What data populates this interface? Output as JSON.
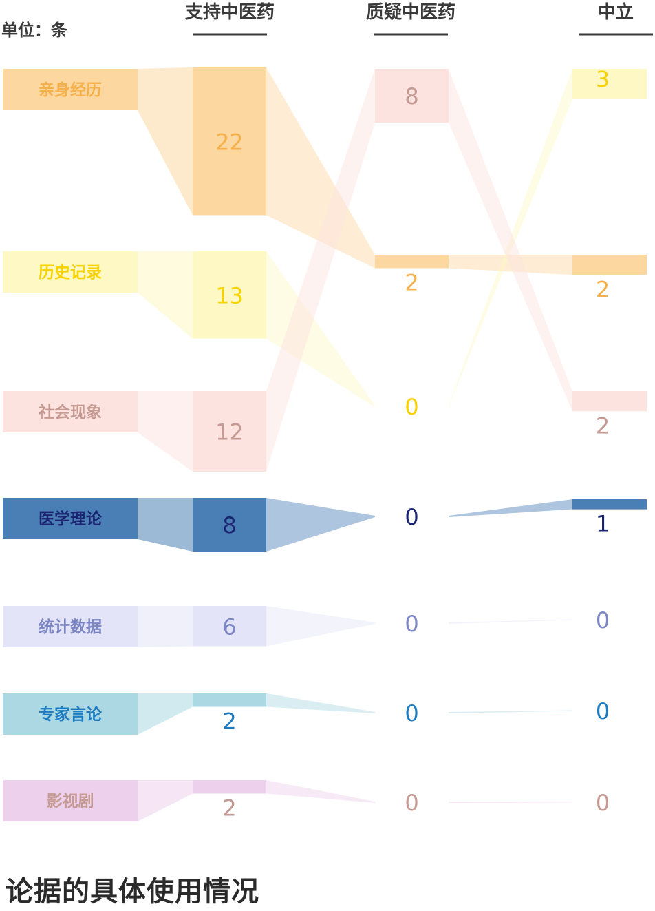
{
  "unit_label": "单位：条",
  "title": "论据的具体使用情况",
  "chart_data": {
    "type": "sankey",
    "title": "论据的具体使用情况",
    "unit": "单位：条",
    "columns": [
      "支持中医药",
      "质疑中医药",
      "中立"
    ],
    "rows": [
      {
        "name": "亲身经历",
        "values": [
          22,
          2,
          2
        ],
        "fill": "#fcd7a0",
        "label_color": "#f5b04a",
        "value_color": "#f5b04a"
      },
      {
        "name": "历史记录",
        "values": [
          13,
          0,
          3
        ],
        "fill": "#fdf8c4",
        "label_color": "#f7d200",
        "value_color": "#f7d200"
      },
      {
        "name": "社会现象",
        "values": [
          12,
          8,
          2
        ],
        "fill": "#fde3e0",
        "label_color": "#c59a93",
        "value_color": "#c59a93"
      },
      {
        "name": "医学理论",
        "values": [
          8,
          0,
          1
        ],
        "fill": "#4a7fb5",
        "label_color": "#1a2470",
        "value_color": "#1a2470"
      },
      {
        "name": "统计数据",
        "values": [
          6,
          0,
          0
        ],
        "fill": "#e3e4f7",
        "label_color": "#7c86c4",
        "value_color": "#7c86c4"
      },
      {
        "name": "专家言论",
        "values": [
          2,
          0,
          0
        ],
        "fill": "#acd8e4",
        "label_color": "#1e7bbf",
        "value_color": "#1e7bbf"
      },
      {
        "name": "影视剧",
        "values": [
          2,
          0,
          0
        ],
        "fill": "#edd0ec",
        "label_color": "#c59a93",
        "value_color": "#c59a93"
      }
    ]
  }
}
